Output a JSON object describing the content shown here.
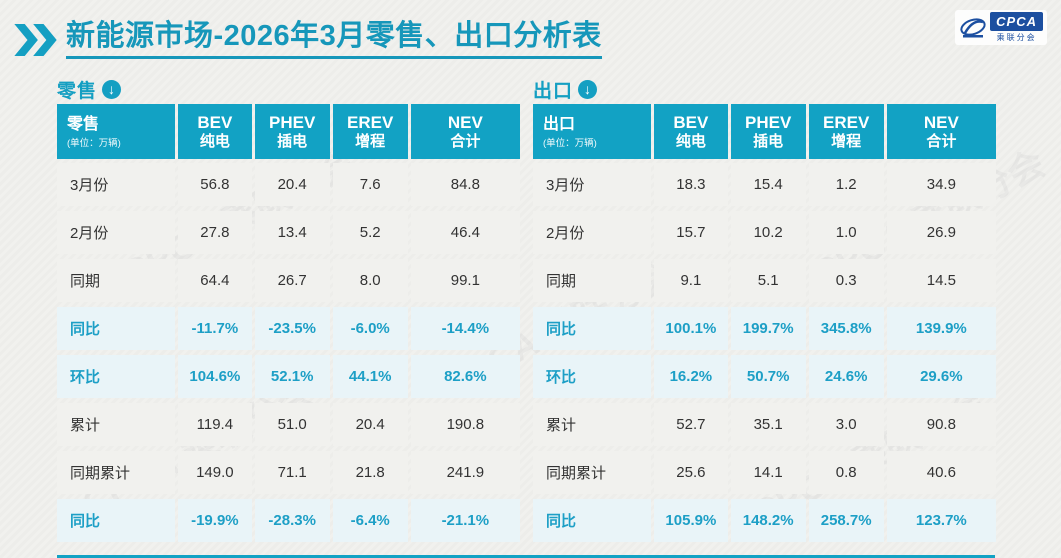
{
  "page": {
    "title": "新能源市场-2026年3月零售、出口分析表",
    "logo": {
      "text": "CPCA",
      "subtext": "乘联分会"
    },
    "watermark": "CPCA 乘联分会"
  },
  "tables": [
    {
      "section_label": "零售",
      "header": {
        "label": "零售",
        "unit": "(单位：万辆)",
        "cols": [
          {
            "en": "BEV",
            "zh": "纯电"
          },
          {
            "en": "PHEV",
            "zh": "插电"
          },
          {
            "en": "EREV",
            "zh": "增程"
          },
          {
            "en": "NEV",
            "zh": "合计"
          }
        ]
      },
      "rows": [
        {
          "label": "3月份",
          "highlight": false,
          "values": [
            "56.8",
            "20.4",
            "7.6",
            "84.8"
          ]
        },
        {
          "label": "2月份",
          "highlight": false,
          "values": [
            "27.8",
            "13.4",
            "5.2",
            "46.4"
          ]
        },
        {
          "label": "同期",
          "highlight": false,
          "values": [
            "64.4",
            "26.7",
            "8.0",
            "99.1"
          ]
        },
        {
          "label": "同比",
          "highlight": true,
          "values": [
            "-11.7%",
            "-23.5%",
            "-6.0%",
            "-14.4%"
          ]
        },
        {
          "label": "环比",
          "highlight": true,
          "values": [
            "104.6%",
            "52.1%",
            "44.1%",
            "82.6%"
          ]
        },
        {
          "label": "累计",
          "highlight": false,
          "values": [
            "119.4",
            "51.0",
            "20.4",
            "190.8"
          ]
        },
        {
          "label": "同期累计",
          "highlight": false,
          "values": [
            "149.0",
            "71.1",
            "21.8",
            "241.9"
          ]
        },
        {
          "label": "同比",
          "highlight": true,
          "values": [
            "-19.9%",
            "-28.3%",
            "-6.4%",
            "-21.1%"
          ]
        }
      ]
    },
    {
      "section_label": "出口",
      "header": {
        "label": "出口",
        "unit": "(单位：万辆)",
        "cols": [
          {
            "en": "BEV",
            "zh": "纯电"
          },
          {
            "en": "PHEV",
            "zh": "插电"
          },
          {
            "en": "EREV",
            "zh": "增程"
          },
          {
            "en": "NEV",
            "zh": "合计"
          }
        ]
      },
      "rows": [
        {
          "label": "3月份",
          "highlight": false,
          "values": [
            "18.3",
            "15.4",
            "1.2",
            "34.9"
          ]
        },
        {
          "label": "2月份",
          "highlight": false,
          "values": [
            "15.7",
            "10.2",
            "1.0",
            "26.9"
          ]
        },
        {
          "label": "同期",
          "highlight": false,
          "values": [
            "9.1",
            "5.1",
            "0.3",
            "14.5"
          ]
        },
        {
          "label": "同比",
          "highlight": true,
          "values": [
            "100.1%",
            "199.7%",
            "345.8%",
            "139.9%"
          ]
        },
        {
          "label": "环比",
          "highlight": true,
          "values": [
            "16.2%",
            "50.7%",
            "24.6%",
            "29.6%"
          ]
        },
        {
          "label": "累计",
          "highlight": false,
          "values": [
            "52.7",
            "35.1",
            "3.0",
            "90.8"
          ]
        },
        {
          "label": "同期累计",
          "highlight": false,
          "values": [
            "25.6",
            "14.1",
            "0.8",
            "40.6"
          ]
        },
        {
          "label": "同比",
          "highlight": true,
          "values": [
            "105.9%",
            "148.2%",
            "258.7%",
            "123.7%"
          ]
        }
      ]
    }
  ]
}
